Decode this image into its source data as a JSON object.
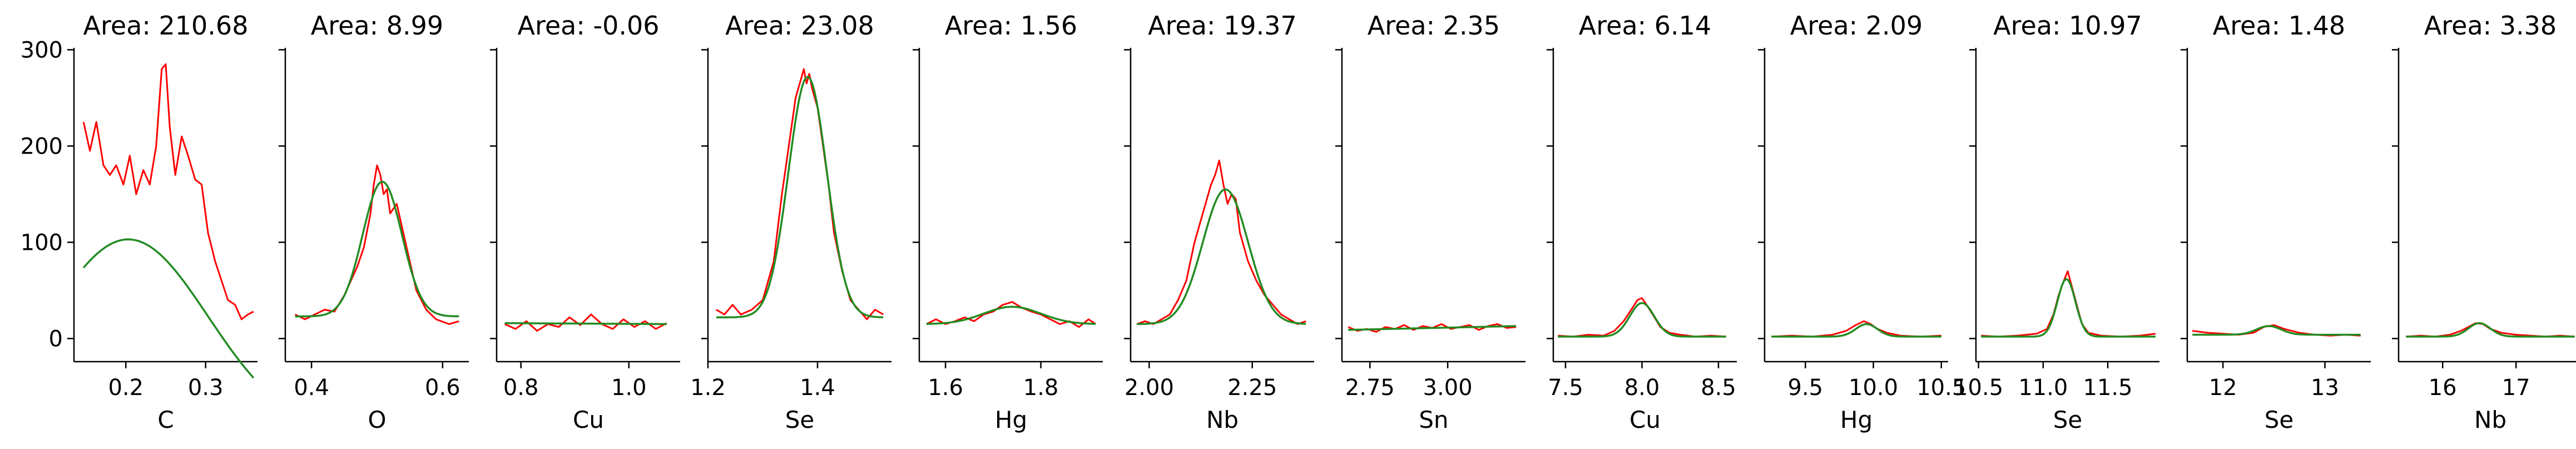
{
  "figure": {
    "ylim": [
      -24,
      302
    ],
    "yticks": [
      0,
      100,
      200,
      300
    ],
    "colors": {
      "data": "#ff0000",
      "fit": "#228b22",
      "axis": "#000000"
    }
  },
  "chart_data": [
    {
      "type": "line",
      "title": "Area: 210.68",
      "xlabel": "C",
      "xlim": [
        0.135,
        0.365
      ],
      "xticks": [
        0.2,
        0.3
      ],
      "xtick_labels": [
        "0.2",
        "0.3"
      ],
      "show_yticklabels": true,
      "series": [
        {
          "name": "data",
          "x": [
            0.147,
            0.155,
            0.163,
            0.172,
            0.18,
            0.188,
            0.197,
            0.205,
            0.213,
            0.222,
            0.23,
            0.238,
            0.245,
            0.25,
            0.255,
            0.262,
            0.27,
            0.278,
            0.287,
            0.295,
            0.303,
            0.312,
            0.32,
            0.328,
            0.337,
            0.345,
            0.353,
            0.36
          ],
          "y": [
            225,
            195,
            225,
            180,
            170,
            180,
            160,
            190,
            150,
            175,
            160,
            200,
            280,
            285,
            220,
            170,
            210,
            190,
            165,
            160,
            110,
            80,
            60,
            40,
            35,
            20,
            25,
            28
          ]
        },
        {
          "name": "fit",
          "model": "gauss",
          "amp": 203,
          "mu": 0.203,
          "sigma": 0.1,
          "base": -100,
          "x0": 0.147,
          "x1": 0.36
        }
      ]
    },
    {
      "type": "line",
      "title": "Area: 8.99",
      "xlabel": "O",
      "xlim": [
        0.36,
        0.64
      ],
      "xticks": [
        0.4,
        0.6
      ],
      "xtick_labels": [
        "0.4",
        "0.6"
      ],
      "show_yticklabels": false,
      "series": [
        {
          "name": "data",
          "x": [
            0.375,
            0.39,
            0.405,
            0.42,
            0.435,
            0.45,
            0.46,
            0.47,
            0.48,
            0.49,
            0.495,
            0.5,
            0.505,
            0.51,
            0.515,
            0.52,
            0.53,
            0.54,
            0.55,
            0.56,
            0.575,
            0.59,
            0.61,
            0.625
          ],
          "y": [
            25,
            20,
            25,
            30,
            28,
            45,
            60,
            75,
            95,
            130,
            160,
            180,
            170,
            150,
            155,
            130,
            140,
            110,
            80,
            50,
            30,
            20,
            15,
            18
          ]
        },
        {
          "name": "fit",
          "model": "gauss",
          "amp": 140,
          "mu": 0.508,
          "sigma": 0.03,
          "base": 23,
          "x0": 0.375,
          "x1": 0.625
        }
      ]
    },
    {
      "type": "line",
      "title": "Area: -0.06",
      "xlabel": "Cu",
      "xlim": [
        0.755,
        1.095
      ],
      "xticks": [
        0.8,
        1.0
      ],
      "xtick_labels": [
        "0.8",
        "1.0"
      ],
      "show_yticklabels": false,
      "series": [
        {
          "name": "data",
          "x": [
            0.77,
            0.79,
            0.81,
            0.83,
            0.85,
            0.87,
            0.89,
            0.91,
            0.93,
            0.95,
            0.97,
            0.99,
            1.01,
            1.03,
            1.05,
            1.07
          ],
          "y": [
            15,
            10,
            18,
            8,
            15,
            12,
            22,
            14,
            25,
            15,
            10,
            20,
            12,
            18,
            10,
            16
          ]
        },
        {
          "name": "fit",
          "model": "line",
          "y0": 16,
          "y1": 15,
          "x0": 0.77,
          "x1": 1.07
        }
      ]
    },
    {
      "type": "line",
      "title": "Area: 23.08",
      "xlabel": "Se",
      "xlim": [
        1.2,
        1.535
      ],
      "xticks": [
        1.2,
        1.4
      ],
      "xtick_labels": [
        "1.2",
        "1.4"
      ],
      "show_yticklabels": false,
      "series": [
        {
          "name": "data",
          "x": [
            1.215,
            1.23,
            1.245,
            1.26,
            1.28,
            1.3,
            1.32,
            1.335,
            1.35,
            1.36,
            1.37,
            1.375,
            1.38,
            1.385,
            1.39,
            1.4,
            1.41,
            1.42,
            1.43,
            1.445,
            1.46,
            1.475,
            1.49,
            1.505,
            1.52
          ],
          "y": [
            30,
            25,
            35,
            25,
            30,
            40,
            80,
            150,
            210,
            250,
            270,
            280,
            265,
            275,
            260,
            240,
            200,
            160,
            110,
            70,
            40,
            30,
            20,
            30,
            25
          ]
        },
        {
          "name": "fit",
          "model": "gauss",
          "amp": 250,
          "mu": 1.382,
          "sigma": 0.035,
          "base": 22,
          "x0": 1.215,
          "x1": 1.52
        }
      ]
    },
    {
      "type": "line",
      "title": "Area: 1.56",
      "xlabel": "Hg",
      "xlim": [
        1.545,
        1.93
      ],
      "xticks": [
        1.6,
        1.8
      ],
      "xtick_labels": [
        "1.6",
        "1.8"
      ],
      "show_yticklabels": false,
      "series": [
        {
          "name": "data",
          "x": [
            1.56,
            1.58,
            1.6,
            1.62,
            1.64,
            1.66,
            1.68,
            1.7,
            1.72,
            1.74,
            1.76,
            1.78,
            1.8,
            1.82,
            1.84,
            1.86,
            1.88,
            1.9,
            1.915
          ],
          "y": [
            15,
            20,
            15,
            18,
            22,
            18,
            25,
            28,
            35,
            38,
            32,
            28,
            25,
            20,
            15,
            18,
            12,
            20,
            15
          ]
        },
        {
          "name": "fit",
          "model": "gauss",
          "amp": 18,
          "mu": 1.74,
          "sigma": 0.06,
          "base": 15,
          "x0": 1.56,
          "x1": 1.915
        }
      ]
    },
    {
      "type": "line",
      "title": "Area: 19.37",
      "xlabel": "Nb",
      "xlim": [
        1.955,
        2.4
      ],
      "xticks": [
        2.0,
        2.25
      ],
      "xtick_labels": [
        "2.00",
        "2.25"
      ],
      "show_yticklabels": false,
      "series": [
        {
          "name": "data",
          "x": [
            1.97,
            1.99,
            2.01,
            2.03,
            2.05,
            2.07,
            2.09,
            2.11,
            2.13,
            2.15,
            2.16,
            2.17,
            2.18,
            2.19,
            2.2,
            2.21,
            2.22,
            2.24,
            2.26,
            2.28,
            2.3,
            2.32,
            2.34,
            2.36,
            2.38
          ],
          "y": [
            15,
            18,
            15,
            20,
            25,
            40,
            60,
            100,
            130,
            160,
            170,
            185,
            160,
            140,
            150,
            145,
            110,
            80,
            60,
            45,
            35,
            25,
            20,
            15,
            18
          ]
        },
        {
          "name": "fit",
          "model": "gauss",
          "amp": 140,
          "mu": 2.185,
          "sigma": 0.055,
          "base": 15,
          "x0": 1.97,
          "x1": 2.38
        }
      ]
    },
    {
      "type": "line",
      "title": "Area: 2.35",
      "xlabel": "Sn",
      "xlim": [
        2.66,
        3.25
      ],
      "xticks": [
        2.75,
        3.0
      ],
      "xtick_labels": [
        "2.75",
        "3.00"
      ],
      "show_yticklabels": false,
      "series": [
        {
          "name": "data",
          "x": [
            2.68,
            2.71,
            2.74,
            2.77,
            2.8,
            2.83,
            2.86,
            2.89,
            2.92,
            2.95,
            2.98,
            3.01,
            3.04,
            3.07,
            3.1,
            3.13,
            3.16,
            3.19,
            3.22
          ],
          "y": [
            12,
            8,
            10,
            7,
            12,
            10,
            14,
            9,
            13,
            11,
            15,
            10,
            12,
            14,
            9,
            13,
            15,
            11,
            12
          ]
        },
        {
          "name": "fit",
          "model": "line",
          "y0": 9,
          "y1": 13,
          "x0": 2.68,
          "x1": 3.22
        }
      ]
    },
    {
      "type": "line",
      "title": "Area: 6.14",
      "xlabel": "Cu",
      "xlim": [
        7.42,
        8.62
      ],
      "xticks": [
        7.5,
        8.0,
        8.5
      ],
      "xtick_labels": [
        "7.5",
        "8.0",
        "8.5"
      ],
      "show_yticklabels": false,
      "series": [
        {
          "name": "data",
          "x": [
            7.45,
            7.55,
            7.65,
            7.75,
            7.82,
            7.88,
            7.93,
            7.97,
            8.0,
            8.03,
            8.07,
            8.12,
            8.18,
            8.25,
            8.35,
            8.45,
            8.55
          ],
          "y": [
            3,
            2,
            4,
            3,
            8,
            18,
            30,
            40,
            42,
            35,
            25,
            12,
            6,
            4,
            2,
            3,
            2
          ]
        },
        {
          "name": "fit",
          "model": "gauss",
          "amp": 35,
          "mu": 8.0,
          "sigma": 0.08,
          "base": 2,
          "x0": 7.45,
          "x1": 8.55
        }
      ]
    },
    {
      "type": "line",
      "title": "Area: 2.09",
      "xlabel": "Hg",
      "xlim": [
        9.2,
        10.55
      ],
      "xticks": [
        9.5,
        10.0,
        10.5
      ],
      "xtick_labels": [
        "9.5",
        "10.0",
        "10.5"
      ],
      "show_yticklabels": false,
      "series": [
        {
          "name": "data",
          "x": [
            9.25,
            9.4,
            9.55,
            9.7,
            9.8,
            9.87,
            9.93,
            9.98,
            10.03,
            10.1,
            10.2,
            10.35,
            10.5
          ],
          "y": [
            2,
            3,
            2,
            4,
            8,
            14,
            18,
            15,
            10,
            6,
            3,
            2,
            3
          ]
        },
        {
          "name": "fit",
          "model": "gauss",
          "amp": 13,
          "mu": 9.95,
          "sigma": 0.08,
          "base": 2,
          "x0": 9.25,
          "x1": 10.5
        }
      ]
    },
    {
      "type": "line",
      "title": "Area: 10.97",
      "xlabel": "Se",
      "xlim": [
        10.48,
        11.9
      ],
      "xticks": [
        10.5,
        11.0,
        11.5
      ],
      "xtick_labels": [
        "10.5",
        "11.0",
        "11.5"
      ],
      "show_yticklabels": false,
      "series": [
        {
          "name": "data",
          "x": [
            10.52,
            10.65,
            10.8,
            10.95,
            11.03,
            11.08,
            11.12,
            11.16,
            11.19,
            11.22,
            11.26,
            11.3,
            11.35,
            11.45,
            11.6,
            11.75,
            11.87
          ],
          "y": [
            3,
            2,
            3,
            5,
            10,
            25,
            45,
            60,
            70,
            55,
            35,
            15,
            6,
            3,
            2,
            3,
            5
          ]
        },
        {
          "name": "fit",
          "model": "gauss",
          "amp": 60,
          "mu": 11.18,
          "sigma": 0.07,
          "base": 2,
          "x0": 10.52,
          "x1": 11.87
        }
      ]
    },
    {
      "type": "line",
      "title": "Area: 1.48",
      "xlabel": "Se",
      "xlim": [
        11.65,
        13.45
      ],
      "xticks": [
        12,
        13
      ],
      "xtick_labels": [
        "12",
        "13"
      ],
      "show_yticklabels": false,
      "series": [
        {
          "name": "data",
          "x": [
            11.7,
            11.85,
            12.0,
            12.15,
            12.3,
            12.4,
            12.5,
            12.6,
            12.75,
            12.9,
            13.05,
            13.2,
            13.35
          ],
          "y": [
            8,
            6,
            5,
            4,
            6,
            12,
            14,
            10,
            6,
            4,
            3,
            4,
            3
          ]
        },
        {
          "name": "fit",
          "model": "gauss",
          "amp": 9,
          "mu": 12.45,
          "sigma": 0.12,
          "base": 4,
          "x0": 11.7,
          "x1": 13.35
        }
      ]
    },
    {
      "type": "line",
      "title": "Area: 3.38",
      "xlabel": "Nb",
      "xlim": [
        15.4,
        17.9
      ],
      "xticks": [
        16,
        17
      ],
      "xtick_labels": [
        "16",
        "17"
      ],
      "show_yticklabels": false,
      "series": [
        {
          "name": "data",
          "x": [
            15.5,
            15.7,
            15.9,
            16.1,
            16.25,
            16.35,
            16.45,
            16.55,
            16.65,
            16.8,
            17.0,
            17.2,
            17.4,
            17.6,
            17.8
          ],
          "y": [
            2,
            3,
            2,
            4,
            8,
            12,
            16,
            15,
            10,
            6,
            4,
            3,
            2,
            3,
            2
          ]
        },
        {
          "name": "fit",
          "model": "gauss",
          "amp": 14,
          "mu": 16.5,
          "sigma": 0.15,
          "base": 2,
          "x0": 15.5,
          "x1": 17.8
        }
      ]
    }
  ]
}
